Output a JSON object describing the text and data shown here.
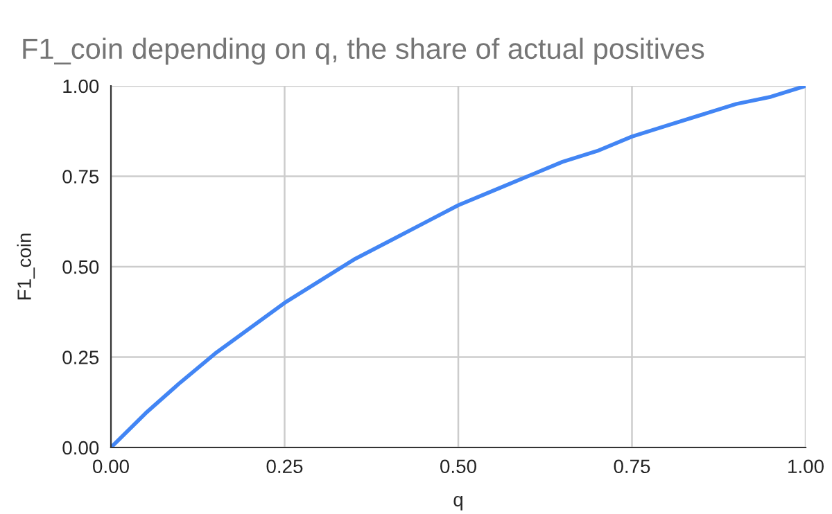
{
  "chart_data": {
    "type": "line",
    "title": "F1_coin depending on q, the share of actual positives",
    "xlabel": "q",
    "ylabel": "F1_coin",
    "x": [
      0,
      0.05,
      0.1,
      0.15,
      0.2,
      0.25,
      0.3,
      0.35,
      0.4,
      0.45,
      0.5,
      0.55,
      0.6,
      0.65,
      0.7,
      0.75,
      0.8,
      0.85,
      0.9,
      0.95,
      1.0
    ],
    "series": [
      {
        "color": "#4285f4",
        "values": [
          0,
          0.095,
          0.18,
          0.26,
          0.33,
          0.4,
          0.46,
          0.52,
          0.57,
          0.62,
          0.67,
          0.71,
          0.75,
          0.79,
          0.82,
          0.86,
          0.89,
          0.92,
          0.95,
          0.97,
          1.0
        ]
      }
    ],
    "xlim": [
      0,
      1
    ],
    "ylim": [
      0,
      1
    ],
    "xticks": [
      {
        "value": 0,
        "label": "0.00"
      },
      {
        "value": 0.25,
        "label": "0.25"
      },
      {
        "value": 0.5,
        "label": "0.50"
      },
      {
        "value": 0.75,
        "label": "0.75"
      },
      {
        "value": 1,
        "label": "1.00"
      }
    ],
    "yticks": [
      {
        "value": 0,
        "label": "0.00"
      },
      {
        "value": 0.25,
        "label": "0.25"
      },
      {
        "value": 0.5,
        "label": "0.50"
      },
      {
        "value": 0.75,
        "label": "0.75"
      },
      {
        "value": 1,
        "label": "1.00"
      }
    ],
    "grid": true,
    "marker": "none",
    "line_style": "solid"
  }
}
